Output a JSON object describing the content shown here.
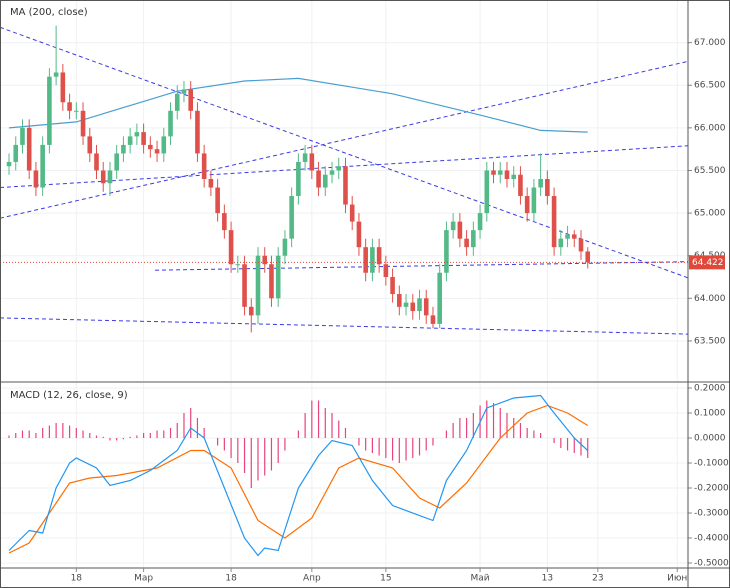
{
  "chart_data": [
    {
      "type": "candlestick",
      "title": "MA (200, close)",
      "open": [
        65.55,
        65.6,
        65.8,
        66.0,
        65.5,
        65.3,
        65.8,
        66.6,
        66.65,
        66.3,
        66.2,
        66.2,
        65.9,
        65.7,
        65.5,
        65.35,
        65.5,
        65.7,
        65.8,
        65.9,
        65.95,
        65.8,
        65.75,
        65.7,
        65.9,
        66.2,
        66.4,
        66.45,
        66.2,
        65.7,
        65.4,
        65.3,
        65.0,
        64.8,
        64.4,
        64.4,
        63.9,
        63.8,
        64.5,
        64.4,
        64.0,
        64.5,
        64.7,
        65.2,
        65.6,
        65.7,
        65.5,
        65.3,
        65.45,
        65.5,
        65.55,
        65.1,
        64.9,
        64.6,
        64.3,
        64.6,
        64.4,
        64.25,
        64.05,
        63.9,
        63.95,
        63.85,
        64.0,
        63.8,
        63.7,
        64.3,
        64.8,
        64.9,
        64.7,
        64.6,
        64.8,
        65.0,
        65.5,
        65.45,
        65.5,
        65.4,
        65.45,
        65.2,
        65.0,
        65.3,
        65.4,
        65.2,
        64.6,
        64.7,
        64.75,
        64.7,
        64.55
      ],
      "high": [
        65.7,
        65.9,
        66.1,
        66.1,
        65.6,
        65.9,
        66.7,
        67.2,
        66.75,
        66.4,
        66.3,
        66.3,
        66.0,
        65.8,
        65.6,
        65.6,
        65.8,
        65.9,
        66.0,
        66.05,
        66.05,
        65.9,
        65.85,
        66.0,
        66.3,
        66.5,
        66.55,
        66.55,
        66.3,
        65.8,
        65.5,
        65.4,
        65.1,
        64.9,
        64.5,
        64.5,
        64.0,
        64.6,
        64.6,
        64.5,
        64.6,
        64.8,
        65.3,
        65.7,
        65.8,
        65.8,
        65.6,
        65.55,
        65.6,
        65.65,
        65.65,
        65.2,
        65.0,
        64.7,
        64.7,
        64.7,
        64.5,
        64.35,
        64.15,
        64.05,
        64.05,
        64.1,
        64.1,
        63.9,
        64.4,
        64.9,
        65.0,
        65.0,
        64.8,
        64.9,
        65.1,
        65.6,
        65.6,
        65.6,
        65.6,
        65.55,
        65.55,
        65.3,
        65.4,
        65.7,
        65.5,
        65.3,
        64.8,
        64.85,
        64.8,
        64.8,
        64.6
      ],
      "low": [
        65.45,
        65.5,
        65.7,
        65.4,
        65.2,
        65.2,
        65.7,
        66.5,
        66.2,
        66.1,
        66.1,
        65.8,
        65.6,
        65.4,
        65.25,
        65.2,
        65.4,
        65.6,
        65.7,
        65.8,
        65.7,
        65.65,
        65.6,
        65.6,
        65.8,
        66.1,
        66.3,
        66.1,
        65.6,
        65.3,
        65.2,
        64.9,
        64.7,
        64.3,
        64.3,
        63.8,
        63.6,
        63.7,
        64.3,
        63.9,
        63.9,
        64.4,
        64.6,
        65.1,
        65.5,
        65.4,
        65.2,
        65.2,
        65.35,
        65.4,
        65.0,
        64.8,
        64.5,
        64.2,
        64.2,
        64.3,
        64.15,
        63.95,
        63.8,
        63.8,
        63.75,
        63.75,
        63.7,
        63.65,
        63.65,
        64.2,
        64.7,
        64.6,
        64.5,
        64.5,
        64.7,
        64.9,
        65.35,
        65.35,
        65.3,
        65.3,
        65.1,
        64.9,
        64.9,
        65.2,
        65.1,
        64.5,
        64.5,
        64.6,
        64.6,
        64.45,
        64.35
      ],
      "close": [
        65.6,
        65.8,
        66.0,
        65.5,
        65.3,
        65.8,
        66.6,
        66.65,
        66.3,
        66.2,
        66.2,
        65.9,
        65.7,
        65.5,
        65.35,
        65.5,
        65.7,
        65.8,
        65.9,
        65.95,
        65.8,
        65.75,
        65.7,
        65.9,
        66.2,
        66.4,
        66.45,
        66.2,
        65.7,
        65.4,
        65.3,
        65.0,
        64.8,
        64.4,
        64.4,
        63.9,
        63.8,
        64.5,
        64.4,
        64.0,
        64.5,
        64.7,
        65.2,
        65.6,
        65.7,
        65.5,
        65.3,
        65.45,
        65.5,
        65.55,
        65.1,
        64.9,
        64.6,
        64.3,
        64.6,
        64.4,
        64.25,
        64.05,
        63.9,
        63.95,
        63.85,
        64.0,
        63.8,
        63.7,
        64.3,
        64.8,
        64.9,
        64.7,
        64.6,
        64.8,
        65.0,
        65.5,
        65.45,
        65.5,
        65.4,
        65.45,
        65.2,
        65.0,
        65.3,
        65.4,
        65.2,
        64.6,
        64.7,
        64.75,
        64.7,
        64.55,
        64.422
      ],
      "up_color": "#53b987",
      "down_color": "#e0504a",
      "ma": {
        "x": [
          0,
          10,
          25,
          35,
          43,
          57,
          70,
          79,
          86
        ],
        "values": [
          66.0,
          66.07,
          66.43,
          66.55,
          66.58,
          66.4,
          66.15,
          65.97,
          65.95
        ],
        "color": "#4a9fd0"
      },
      "trendlines": [
        {
          "x": [
            -1.34,
            100.9
          ],
          "y": [
            67.18,
            64.24
          ]
        },
        {
          "x": [
            -1.34,
            100.9
          ],
          "y": [
            64.94,
            66.78
          ]
        },
        {
          "x": [
            -1.34,
            100.9
          ],
          "y": [
            65.3,
            65.79
          ]
        },
        {
          "x": [
            21.7,
            100.9
          ],
          "y": [
            64.33,
            64.43
          ]
        },
        {
          "x": [
            -1.34,
            100.9
          ],
          "y": [
            63.77,
            63.58
          ]
        }
      ],
      "trendline_color": "#3b3be8",
      "last_price_color": "#e0483a",
      "xlim": [
        -1.34,
        100.9
      ],
      "ylim": [
        63.03,
        67.5
      ],
      "yticks": [
        {
          "value": 63.5,
          "label": "63.500"
        },
        {
          "value": 64,
          "label": "64.000"
        },
        {
          "value": 64.5,
          "label": "64.500"
        },
        {
          "value": 65,
          "label": "65.000"
        },
        {
          "value": 65.5,
          "label": "65.500"
        },
        {
          "value": 66,
          "label": "66.000"
        },
        {
          "value": 66.5,
          "label": "66.500"
        },
        {
          "value": 67,
          "label": "67.000"
        }
      ]
    },
    {
      "type": "macd",
      "title": "MACD (12, 26, close, 9)",
      "histogram": {
        "values": [
          0.01,
          0.02,
          0.03,
          0.03,
          0.02,
          0.04,
          0.05,
          0.06,
          0.06,
          0.05,
          0.04,
          0.03,
          0.02,
          0.01,
          0.005,
          -0.01,
          -0.01,
          -0.005,
          0.005,
          0.01,
          0.02,
          0.02,
          0.03,
          0.03,
          0.04,
          0.06,
          0.1,
          0.12,
          0.08,
          0.04,
          0.0,
          -0.03,
          -0.05,
          -0.08,
          -0.1,
          -0.14,
          -0.2,
          -0.17,
          -0.15,
          -0.13,
          -0.1,
          -0.05,
          0.0,
          0.03,
          0.1,
          0.15,
          0.15,
          0.12,
          0.1,
          0.07,
          0.04,
          0.0,
          -0.03,
          -0.05,
          -0.06,
          -0.07,
          -0.08,
          -0.09,
          -0.1,
          -0.09,
          -0.08,
          -0.07,
          -0.05,
          -0.03,
          0.0,
          0.03,
          0.06,
          0.08,
          0.08,
          0.1,
          0.13,
          0.15,
          0.14,
          0.12,
          0.1,
          0.08,
          0.06,
          0.04,
          0.03,
          0.02,
          0.0,
          -0.02,
          -0.04,
          -0.05,
          -0.06,
          -0.07,
          -0.08
        ],
        "color": "#e8447e"
      },
      "macd": {
        "x": [
          0,
          3,
          5,
          7,
          9,
          10,
          13,
          15,
          18,
          21,
          25,
          27,
          29,
          32,
          35,
          37,
          38,
          40,
          43,
          46,
          48,
          51,
          54,
          57,
          60,
          63,
          65,
          68,
          71,
          75,
          79,
          81,
          84,
          86
        ],
        "values": [
          -0.45,
          -0.37,
          -0.38,
          -0.2,
          -0.1,
          -0.08,
          -0.12,
          -0.19,
          -0.17,
          -0.13,
          -0.05,
          0.04,
          0.0,
          -0.2,
          -0.4,
          -0.47,
          -0.44,
          -0.45,
          -0.2,
          -0.07,
          -0.01,
          -0.03,
          -0.17,
          -0.27,
          -0.3,
          -0.33,
          -0.17,
          -0.05,
          0.12,
          0.16,
          0.17,
          0.1,
          0.0,
          -0.05
        ],
        "color": "#2196f3"
      },
      "signal": {
        "x": [
          0,
          3,
          6,
          9,
          12,
          16,
          22,
          27,
          29,
          33,
          37,
          41,
          45,
          49,
          52,
          57,
          61,
          64,
          68,
          73,
          77,
          80,
          83,
          86
        ],
        "values": [
          -0.46,
          -0.42,
          -0.3,
          -0.18,
          -0.16,
          -0.15,
          -0.12,
          -0.05,
          -0.05,
          -0.12,
          -0.33,
          -0.4,
          -0.32,
          -0.12,
          -0.08,
          -0.12,
          -0.24,
          -0.28,
          -0.18,
          0.0,
          0.1,
          0.13,
          0.1,
          0.05
        ],
        "color": "#ff6d00"
      },
      "xlim": [
        -1.34,
        100.9
      ],
      "ylim": [
        -0.52,
        0.22
      ],
      "yticks": [
        {
          "value": 0.2,
          "label": "0.2000"
        },
        {
          "value": 0.1,
          "label": "0.1000"
        },
        {
          "value": 0,
          "label": "0.0000"
        },
        {
          "value": -0.1,
          "label": "-0.1000"
        },
        {
          "value": -0.2,
          "label": "-0.2000"
        },
        {
          "value": -0.3,
          "label": "-0.3000"
        },
        {
          "value": -0.4,
          "label": "-0.4000"
        },
        {
          "value": -0.5,
          "label": "-0.5000"
        }
      ],
      "xticks": [
        {
          "value": 10,
          "label": "18"
        },
        {
          "value": 20,
          "label": "Мар"
        },
        {
          "value": 33,
          "label": "18"
        },
        {
          "value": 45,
          "label": "Апр"
        },
        {
          "value": 56,
          "label": "15"
        },
        {
          "value": 70,
          "label": "Май"
        },
        {
          "value": 80,
          "label": "13"
        },
        {
          "value": 87.5,
          "label": "23"
        },
        {
          "value": 99.3,
          "label": "Июн"
        }
      ]
    }
  ]
}
